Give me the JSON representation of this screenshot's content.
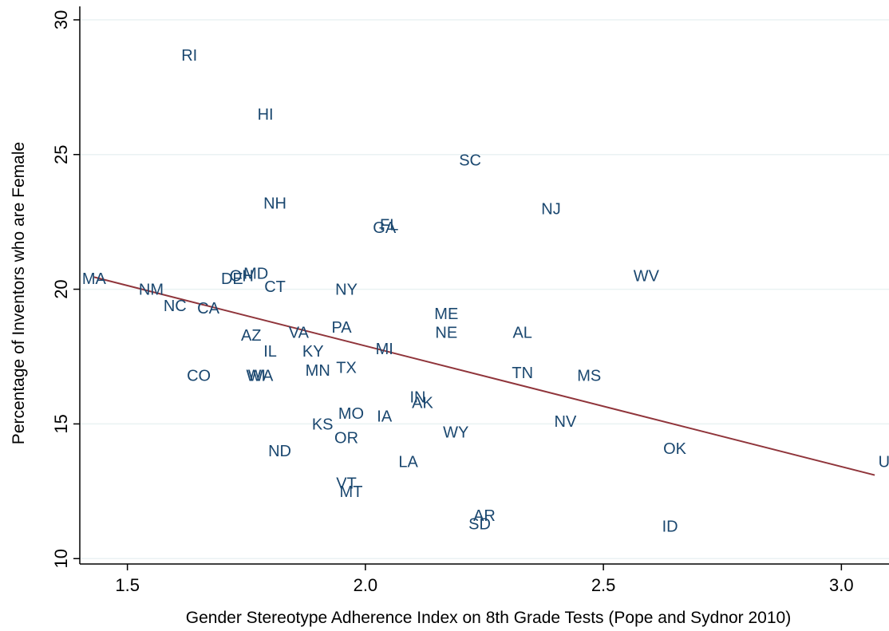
{
  "chart_data": {
    "type": "scatter",
    "xlabel": "Gender Stereotype Adherence Index on 8th Grade Tests (Pope and Sydnor 2010)",
    "ylabel": "Percentage of Inventors who are Female",
    "xlim": [
      1.4,
      3.1
    ],
    "ylim": [
      9.8,
      30.5
    ],
    "xticks": [
      1.5,
      2.0,
      2.5,
      3.0
    ],
    "xtick_labels": [
      "1.5",
      "2.0",
      "2.5",
      "3.0"
    ],
    "yticks": [
      10,
      15,
      20,
      25,
      30
    ],
    "ytick_labels": [
      "10",
      "15",
      "20",
      "25",
      "30"
    ],
    "grid": "horizontal",
    "points": [
      {
        "label": "RI",
        "x": 1.63,
        "y": 28.7
      },
      {
        "label": "HI",
        "x": 1.79,
        "y": 26.5
      },
      {
        "label": "SC",
        "x": 2.22,
        "y": 24.8
      },
      {
        "label": "NH",
        "x": 1.81,
        "y": 23.2
      },
      {
        "label": "NJ",
        "x": 2.39,
        "y": 23.0
      },
      {
        "label": "GA",
        "x": 2.04,
        "y": 22.3
      },
      {
        "label": "FL",
        "x": 2.05,
        "y": 22.4
      },
      {
        "label": "MA",
        "x": 1.43,
        "y": 20.4
      },
      {
        "label": "WV",
        "x": 2.59,
        "y": 20.5
      },
      {
        "label": "DE",
        "x": 1.72,
        "y": 20.4
      },
      {
        "label": "OH",
        "x": 1.74,
        "y": 20.5
      },
      {
        "label": "MD",
        "x": 1.77,
        "y": 20.6
      },
      {
        "label": "CT",
        "x": 1.81,
        "y": 20.1
      },
      {
        "label": "NM",
        "x": 1.55,
        "y": 20.0
      },
      {
        "label": "NY",
        "x": 1.96,
        "y": 20.0
      },
      {
        "label": "NC",
        "x": 1.6,
        "y": 19.4
      },
      {
        "label": "CA",
        "x": 1.67,
        "y": 19.3
      },
      {
        "label": "ME",
        "x": 2.17,
        "y": 19.1
      },
      {
        "label": "PA",
        "x": 1.95,
        "y": 18.6
      },
      {
        "label": "VA",
        "x": 1.86,
        "y": 18.4
      },
      {
        "label": "NE",
        "x": 2.17,
        "y": 18.4
      },
      {
        "label": "AL",
        "x": 2.33,
        "y": 18.4
      },
      {
        "label": "AZ",
        "x": 1.76,
        "y": 18.3
      },
      {
        "label": "IL",
        "x": 1.8,
        "y": 17.7
      },
      {
        "label": "KY",
        "x": 1.89,
        "y": 17.7
      },
      {
        "label": "MI",
        "x": 2.04,
        "y": 17.8
      },
      {
        "label": "TX",
        "x": 1.96,
        "y": 17.1
      },
      {
        "label": "MN",
        "x": 1.9,
        "y": 17.0
      },
      {
        "label": "TN",
        "x": 2.33,
        "y": 16.9
      },
      {
        "label": "MS",
        "x": 2.47,
        "y": 16.8
      },
      {
        "label": "CO",
        "x": 1.65,
        "y": 16.8
      },
      {
        "label": "WA",
        "x": 1.78,
        "y": 16.8
      },
      {
        "label": "WI",
        "x": 1.77,
        "y": 16.8
      },
      {
        "label": "IN",
        "x": 2.11,
        "y": 16.0
      },
      {
        "label": "AK",
        "x": 2.12,
        "y": 15.8
      },
      {
        "label": "MO",
        "x": 1.97,
        "y": 15.4
      },
      {
        "label": "IA",
        "x": 2.04,
        "y": 15.3
      },
      {
        "label": "KS",
        "x": 1.91,
        "y": 15.0
      },
      {
        "label": "NV",
        "x": 2.42,
        "y": 15.1
      },
      {
        "label": "WY",
        "x": 2.19,
        "y": 14.7
      },
      {
        "label": "OR",
        "x": 1.96,
        "y": 14.5
      },
      {
        "label": "OK",
        "x": 2.65,
        "y": 14.1
      },
      {
        "label": "ND",
        "x": 1.82,
        "y": 14.0
      },
      {
        "label": "LA",
        "x": 2.09,
        "y": 13.6
      },
      {
        "label": "UT",
        "x": 3.1,
        "y": 13.6
      },
      {
        "label": "VT",
        "x": 1.96,
        "y": 12.8
      },
      {
        "label": "MT",
        "x": 1.97,
        "y": 12.5
      },
      {
        "label": "AR",
        "x": 2.25,
        "y": 11.6
      },
      {
        "label": "SD",
        "x": 2.24,
        "y": 11.3
      },
      {
        "label": "ID",
        "x": 2.64,
        "y": 11.2
      }
    ],
    "fit_line": {
      "x": [
        1.43,
        3.07
      ],
      "y": [
        20.45,
        13.1
      ]
    },
    "colors": {
      "labels": "#1a476f",
      "fit_line": "#90353b",
      "grid": "#eaf2f3",
      "axis": "#000000"
    }
  }
}
